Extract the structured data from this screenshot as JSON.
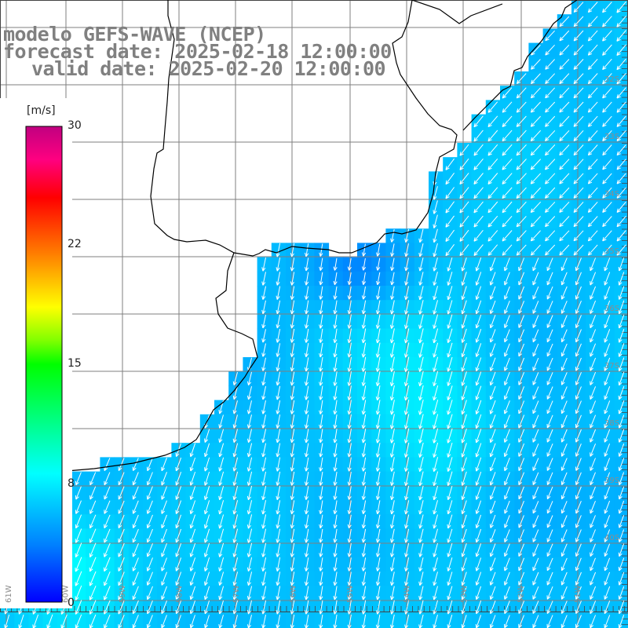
{
  "header": {
    "model_line": "modelo GEFS-WAVE (NCEP)",
    "forecast_line": "forecast date: 2025-02-18 12:00:00",
    "valid_line": "valid date: 2025-02-20 12:00:00"
  },
  "colorbar": {
    "units": "[m/s]",
    "ticks": [
      "30",
      "22",
      "15",
      "8",
      "0"
    ],
    "tick_values": [
      30,
      22,
      15,
      8,
      0
    ],
    "range": [
      0,
      30
    ],
    "colors": [
      "#0000ff",
      "#0080ff",
      "#00ffff",
      "#00ff00",
      "#80ff00",
      "#ffff00",
      "#ff8000",
      "#ff0000",
      "#ff0080",
      "#c00080"
    ]
  },
  "map": {
    "variable": "wind speed and direction",
    "lat_labels": [
      "32S",
      "33S",
      "34S",
      "35S",
      "36S",
      "37S",
      "38S",
      "39S",
      "40S"
    ],
    "lon_labels": [
      "61W",
      "60W",
      "59W",
      "58W",
      "57W",
      "56W",
      "55W",
      "54W",
      "53W",
      "52W",
      "51W"
    ],
    "dominant_direction": "from north-northeast",
    "colors": {
      "land": "#ffffff",
      "coast": "#000000",
      "grid": "#7f7f7f",
      "arrow": "#ffffff",
      "label": "#8c8c8c"
    }
  }
}
